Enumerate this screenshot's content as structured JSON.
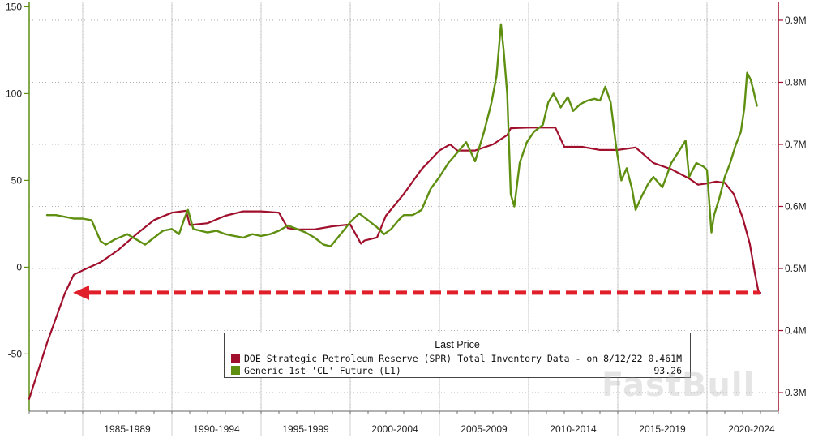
{
  "chart_data": {
    "type": "line",
    "x_range": [
      1982.0,
      2024.0
    ],
    "x_tick_labels": [
      "1985-1989",
      "1990-1994",
      "1995-1999",
      "2000-2004",
      "2005-2009",
      "2010-2014",
      "2015-2019",
      "2020-2024"
    ],
    "left_axis": {
      "ticks": [
        -50,
        0,
        50,
        100,
        150
      ],
      "range": [
        -83,
        153
      ],
      "color": "#5f8f10"
    },
    "right_axis": {
      "ticks": [
        "0.3M",
        "0.4M",
        "0.5M",
        "0.6M",
        "0.7M",
        "0.8M",
        "0.9M"
      ],
      "range": [
        0.27,
        0.93
      ],
      "color": "#a00f2c"
    },
    "grid": true,
    "legend": {
      "title": "Last Price",
      "placement": "bottom-center",
      "entries": [
        {
          "label": "DOE Strategic Petroleum Reserve (SPR) Total Inventory Data -  on 8/12/22  (R1)",
          "value": "0.461M",
          "color": "#a00f2c"
        },
        {
          "label": "Generic 1st 'CL' Future  (L1)",
          "value": "93.26",
          "color": "#5f8f10"
        }
      ]
    },
    "series": [
      {
        "name": "DOE Strategic Petroleum Reserve (SPR) Total Inventory Data",
        "axis": "right",
        "color": "#a00f2c",
        "x": [
          1982.0,
          1982.5,
          1983.0,
          1983.5,
          1984.0,
          1984.5,
          1985.0,
          1986.0,
          1987.0,
          1988.0,
          1989.0,
          1990.0,
          1990.8,
          1991.0,
          1992.0,
          1993.0,
          1994.0,
          1995.0,
          1996.0,
          1996.5,
          1997.0,
          1998.0,
          1999.0,
          2000.0,
          2000.6,
          2000.8,
          2001.5,
          2002.0,
          2003.0,
          2004.0,
          2005.0,
          2005.6,
          2006.0,
          2007.0,
          2008.0,
          2008.8,
          2009.0,
          2010.0,
          2011.0,
          2011.5,
          2012.0,
          2013.0,
          2014.0,
          2015.0,
          2016.0,
          2017.0,
          2017.8,
          2018.0,
          2019.0,
          2019.5,
          2020.0,
          2020.5,
          2021.0,
          2021.5,
          2022.0,
          2022.4,
          2022.7,
          2022.9,
          2023.0
        ],
        "values": [
          0.29,
          0.335,
          0.38,
          0.42,
          0.46,
          0.49,
          0.497,
          0.51,
          0.53,
          0.555,
          0.578,
          0.59,
          0.593,
          0.57,
          0.573,
          0.585,
          0.592,
          0.592,
          0.59,
          0.565,
          0.563,
          0.563,
          0.568,
          0.571,
          0.54,
          0.545,
          0.55,
          0.585,
          0.62,
          0.66,
          0.69,
          0.7,
          0.69,
          0.69,
          0.7,
          0.715,
          0.726,
          0.727,
          0.727,
          0.727,
          0.696,
          0.696,
          0.691,
          0.691,
          0.695,
          0.67,
          0.662,
          0.66,
          0.645,
          0.635,
          0.637,
          0.64,
          0.638,
          0.62,
          0.582,
          0.54,
          0.49,
          0.461,
          0.461
        ]
      },
      {
        "name": "Generic 1st 'CL' Future",
        "axis": "left",
        "color": "#5f8f10",
        "x": [
          1983.0,
          1983.5,
          1984.0,
          1984.5,
          1985.0,
          1985.5,
          1986.0,
          1986.3,
          1986.8,
          1987.5,
          1988.0,
          1988.5,
          1989.0,
          1989.5,
          1990.0,
          1990.4,
          1990.7,
          1990.9,
          1991.2,
          1991.6,
          1992.0,
          1992.5,
          1993.0,
          1993.5,
          1994.0,
          1994.5,
          1995.0,
          1995.5,
          1996.0,
          1996.5,
          1997.0,
          1997.5,
          1998.0,
          1998.5,
          1998.9,
          1999.3,
          1999.7,
          2000.0,
          2000.5,
          2001.0,
          2001.5,
          2001.9,
          2002.3,
          2002.7,
          2003.0,
          2003.5,
          2004.0,
          2004.5,
          2005.0,
          2005.5,
          2006.0,
          2006.5,
          2007.0,
          2007.5,
          2007.9,
          2008.2,
          2008.45,
          2008.6,
          2008.8,
          2009.0,
          2009.2,
          2009.5,
          2009.9,
          2010.3,
          2010.8,
          2011.1,
          2011.4,
          2011.8,
          2012.2,
          2012.5,
          2012.9,
          2013.3,
          2013.7,
          2014.0,
          2014.3,
          2014.6,
          2014.9,
          2015.2,
          2015.5,
          2015.8,
          2016.0,
          2016.3,
          2016.7,
          2017.0,
          2017.5,
          2018.0,
          2018.5,
          2018.8,
          2019.0,
          2019.4,
          2019.8,
          2020.0,
          2020.25,
          2020.4,
          2020.7,
          2021.0,
          2021.3,
          2021.6,
          2021.9,
          2022.1,
          2022.25,
          2022.45,
          2022.6,
          2022.8
        ],
        "values": [
          30,
          30,
          29,
          28,
          28,
          27,
          15,
          13,
          16,
          19,
          16,
          13,
          17,
          21,
          22,
          19,
          28,
          33,
          22,
          21,
          20,
          21,
          19,
          18,
          17,
          19,
          18,
          19,
          21,
          24,
          22,
          20,
          17,
          13,
          12,
          17,
          22,
          26,
          31,
          27,
          23,
          19,
          22,
          27,
          30,
          30,
          33,
          45,
          52,
          60,
          66,
          72,
          61,
          78,
          94,
          110,
          140,
          125,
          100,
          42,
          35,
          60,
          72,
          78,
          82,
          95,
          100,
          92,
          98,
          90,
          94,
          96,
          97,
          96,
          104,
          95,
          70,
          50,
          57,
          45,
          33,
          40,
          48,
          52,
          46,
          60,
          68,
          73,
          52,
          60,
          58,
          56,
          20,
          30,
          40,
          52,
          60,
          70,
          78,
          92,
          112,
          108,
          102,
          93
        ]
      }
    ]
  }
}
